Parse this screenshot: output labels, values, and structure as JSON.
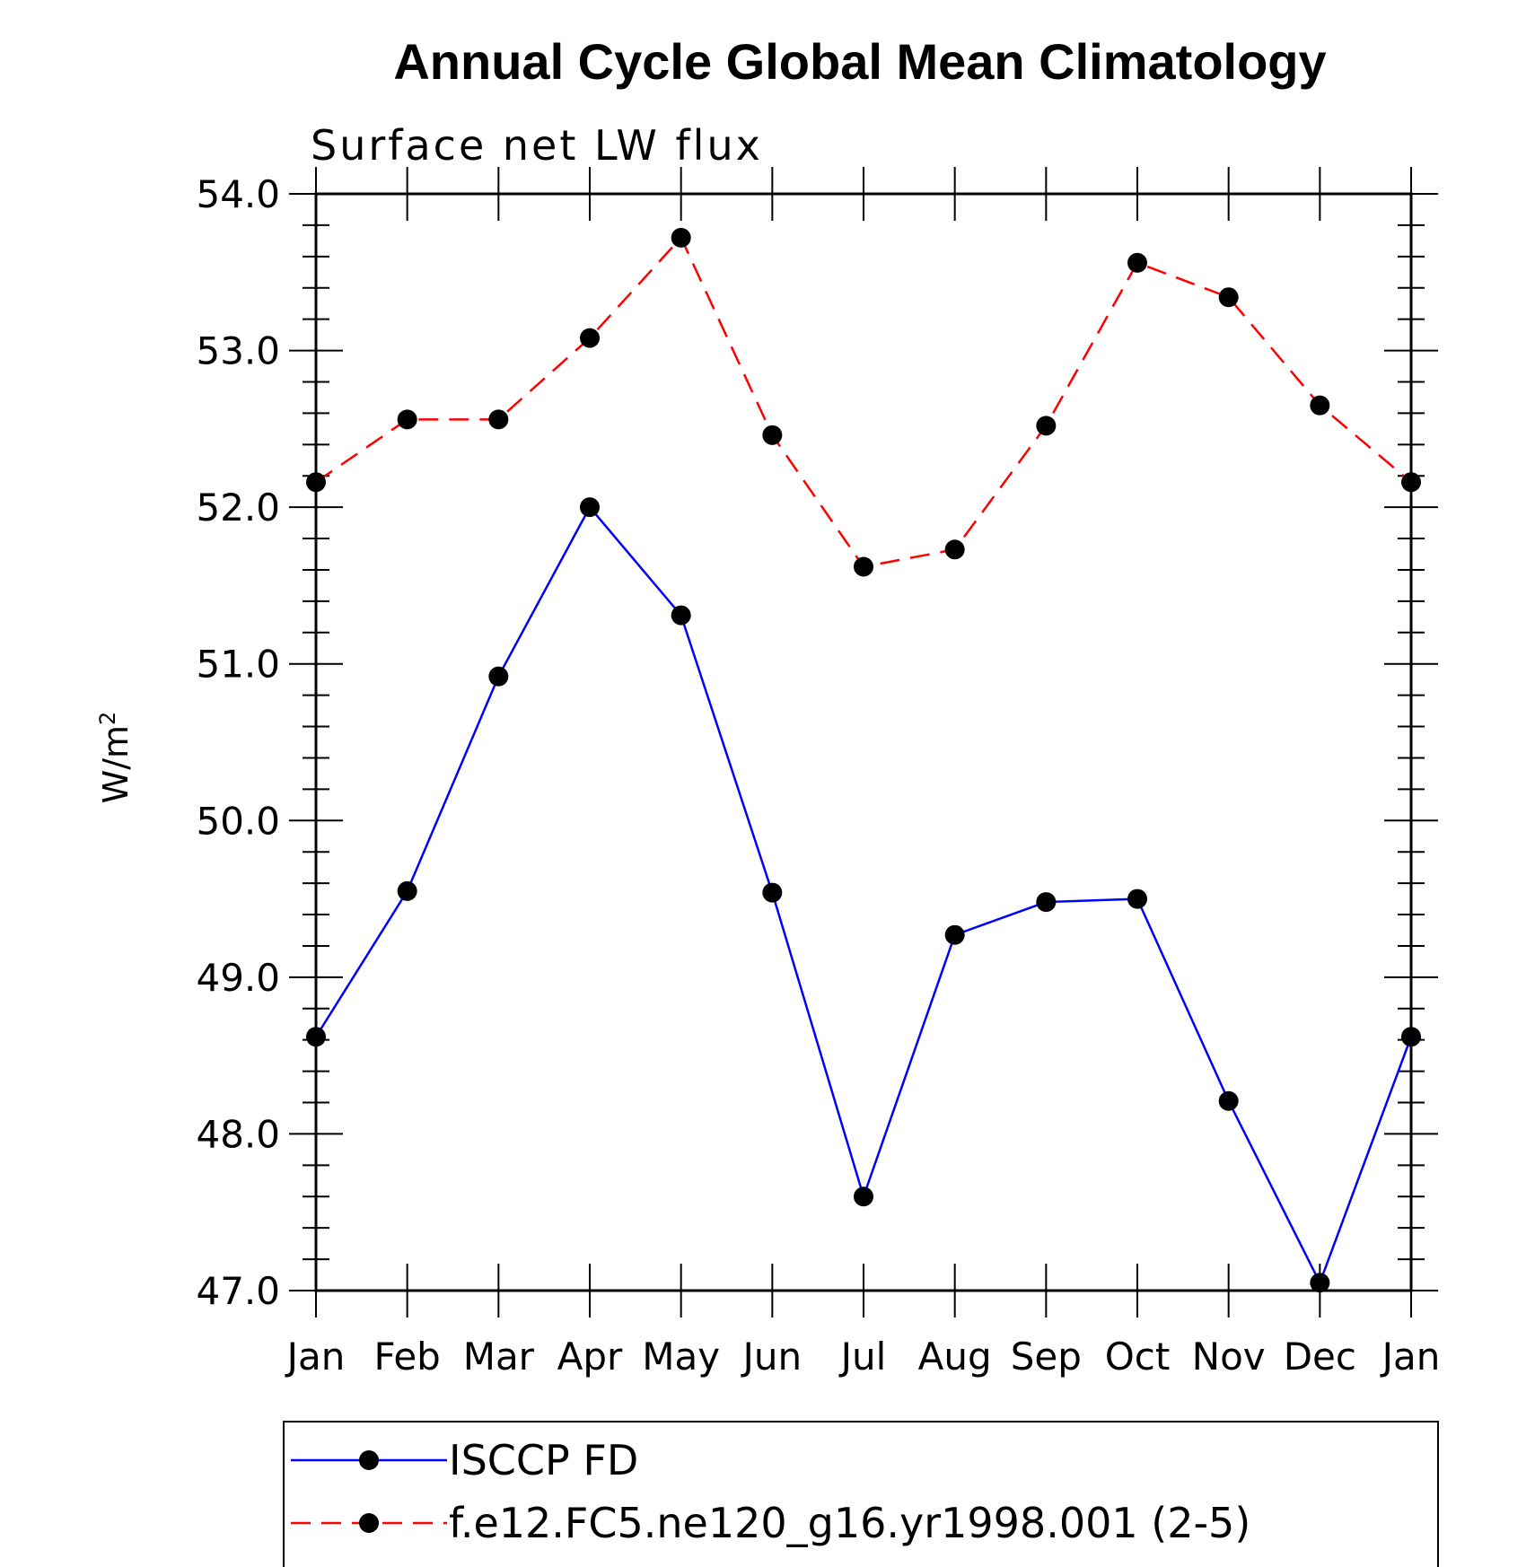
{
  "chart_data": {
    "type": "line",
    "title": "Annual Cycle Global Mean Climatology",
    "subtitle": "Surface net LW flux",
    "ylabel": "W/m",
    "ylabel_superscript": "2",
    "xlabel": "",
    "ylim": [
      47.0,
      54.0
    ],
    "yticks": [
      "47.0",
      "48.0",
      "49.0",
      "50.0",
      "51.0",
      "52.0",
      "53.0",
      "54.0"
    ],
    "categories": [
      "Jan",
      "Feb",
      "Mar",
      "Apr",
      "May",
      "Jun",
      "Jul",
      "Aug",
      "Sep",
      "Oct",
      "Nov",
      "Dec",
      "Jan"
    ],
    "series": [
      {
        "name": "ISCCP FD",
        "color": "#0000ff",
        "dash": "solid",
        "values": [
          48.62,
          49.55,
          50.92,
          52.0,
          51.31,
          49.54,
          47.6,
          49.27,
          49.48,
          49.5,
          48.21,
          47.05,
          48.62
        ]
      },
      {
        "name": "f.e12.FC5.ne120_g16.yr1998.001 (2-5)",
        "color": "#ff0000",
        "dash": "dashed",
        "values": [
          52.16,
          52.56,
          52.56,
          53.08,
          53.72,
          52.46,
          51.62,
          51.73,
          52.52,
          53.56,
          53.34,
          52.65,
          52.16
        ]
      }
    ],
    "legend_position": "bottom"
  }
}
